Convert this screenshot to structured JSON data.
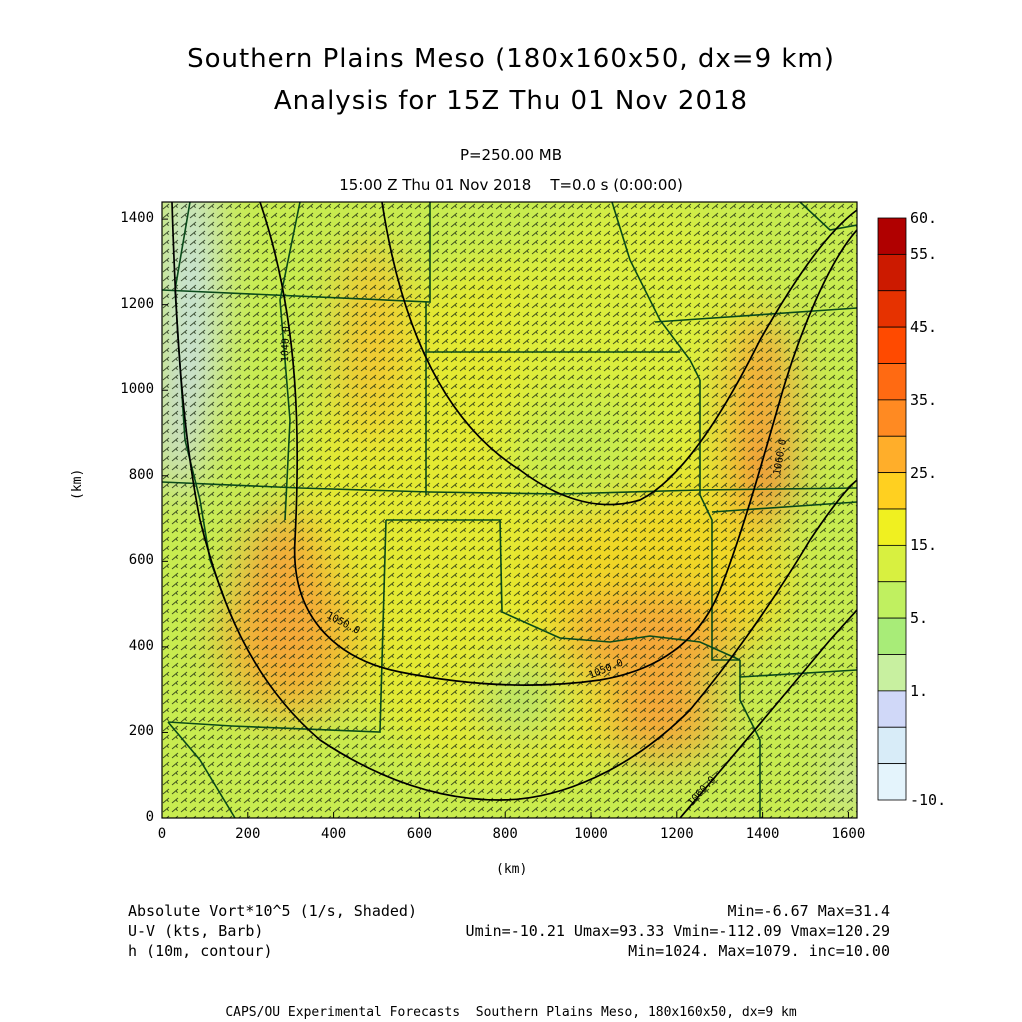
{
  "header": {
    "title_line1": "Southern Plains Meso (180x160x50, dx=9 km)",
    "title_line2": "Analysis for 15Z Thu 01 Nov 2018",
    "level": "P=250.00 MB",
    "time": "15:00 Z Thu 01 Nov 2018    T=0.0 s (0:00:00)"
  },
  "axes": {
    "x_label": "(km)",
    "y_label": "(km)",
    "x_ticks": [
      "0",
      "200",
      "400",
      "600",
      "800",
      "1000",
      "1200",
      "1400",
      "1600"
    ],
    "y_ticks": [
      "0",
      "200",
      "400",
      "600",
      "800",
      "1000",
      "1200",
      "1400"
    ],
    "x_range": [
      0,
      1620
    ],
    "y_range": [
      0,
      1440
    ]
  },
  "colorbar": {
    "labels": [
      "60.",
      "55.",
      "45.",
      "35.",
      "25.",
      "15.",
      "5.",
      "1.",
      "-10."
    ],
    "colors": [
      "#b00000",
      "#cc1a00",
      "#e63200",
      "#ff4a00",
      "#ff6a12",
      "#ff8a22",
      "#ffae2a",
      "#ffd020",
      "#f0f020",
      "#d8f040",
      "#c0f060",
      "#a8ec78",
      "#c8f0a0",
      "#d0d8f8",
      "#d8ecf8",
      "#e4f4fc"
    ]
  },
  "contours": [
    {
      "label": "1040.0"
    },
    {
      "label": "1050.0"
    },
    {
      "label": "1060.0"
    }
  ],
  "info": {
    "field1_name": "Absolute Vort*10^5 (1/s, Shaded)",
    "field1_stats": "Min=-6.67 Max=31.4",
    "field2_name": "U-V (kts, Barb)",
    "field2_stats": "Umin=-10.21 Umax=93.33 Vmin=-112.09 Vmax=120.29",
    "field3_name": "h (10m, contour)",
    "field3_stats": "Min=1024. Max=1079. inc=10.00"
  },
  "footer": "CAPS/OU Experimental Forecasts  Southern Plains Meso, 180x160x50, dx=9 km"
}
